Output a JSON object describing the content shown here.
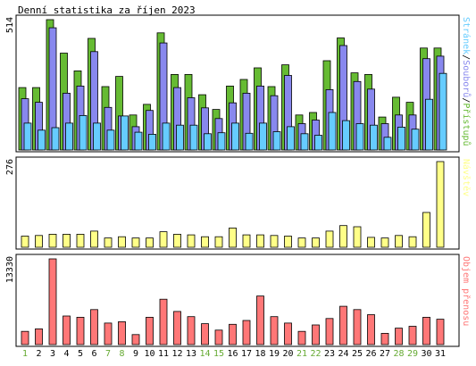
{
  "chart_data": {
    "type": "bar",
    "title": "Denní statistika za říjen 2023",
    "categories": [
      "1",
      "2",
      "3",
      "4",
      "5",
      "6",
      "7",
      "8",
      "9",
      "10",
      "11",
      "12",
      "13",
      "14",
      "15",
      "16",
      "17",
      "18",
      "19",
      "20",
      "21",
      "22",
      "23",
      "24",
      "25",
      "26",
      "27",
      "28",
      "29",
      "30",
      "31"
    ],
    "weekend_days": [
      1,
      7,
      8,
      14,
      15,
      21,
      22,
      28,
      29
    ],
    "colors": {
      "pristupu": "#66bb33",
      "souboru": "#8888ee",
      "stranek": "#66ccff",
      "navstev": "#ffff88",
      "prenosu": "#ff7777",
      "weekday_label": "#000000",
      "weekend_label": "#66aa33"
    },
    "panels": [
      {
        "id": "top",
        "ymax": 514,
        "ymax_label": "514",
        "legend": [
          {
            "key": "stranek",
            "text": "Stránek"
          },
          {
            "key": "sep1",
            "text": "/"
          },
          {
            "key": "souboru",
            "text": "Souborů"
          },
          {
            "key": "sep2",
            "text": "/"
          },
          {
            "key": "pristupu",
            "text": "Přístupů"
          }
        ],
        "series": [
          {
            "key": "pristupu",
            "name": "Přístupů",
            "values": [
              246,
              246,
              514,
              382,
              312,
              440,
              250,
              290,
              138,
              180,
              462,
              298,
              298,
              218,
              160,
              252,
              278,
              324,
              250,
              336,
              138,
              148,
              352,
              442,
              304,
              298,
              130,
              208,
              188,
              402,
              402
            ]
          },
          {
            "key": "souboru",
            "name": "Souborů",
            "values": [
              202,
              188,
              482,
              224,
              252,
              388,
              168,
              134,
              92,
              156,
              422,
              246,
              206,
              166,
              124,
              186,
              224,
              252,
              214,
              294,
              104,
              118,
              238,
              412,
              270,
              240,
              104,
              138,
              138,
              360,
              370
            ]
          },
          {
            "key": "stranek",
            "name": "Stránek",
            "values": [
              106,
              78,
              88,
              106,
              136,
              106,
              78,
              134,
              70,
              62,
              106,
              98,
              98,
              64,
              68,
              106,
              66,
              106,
              72,
              92,
              64,
              58,
              148,
              116,
              104,
              98,
              50,
              90,
              82,
              200,
              302
            ]
          }
        ]
      },
      {
        "id": "mid",
        "ymax": 276,
        "ymax_label": "276",
        "legend": [
          {
            "key": "navstev",
            "text": "Návštěv"
          }
        ],
        "series": [
          {
            "key": "navstev",
            "name": "Návštěv",
            "values": [
              36,
              38,
              42,
              42,
              42,
              52,
              30,
              34,
              30,
              30,
              50,
              42,
              40,
              34,
              34,
              62,
              40,
              40,
              38,
              36,
              30,
              30,
              52,
              70,
              66,
              32,
              30,
              38,
              34,
              112,
              276
            ]
          }
        ]
      },
      {
        "id": "bot",
        "ymax": 13330,
        "ymax_label": "13330",
        "legend": [
          {
            "key": "prenosu",
            "text": "Objem přenosu"
          }
        ],
        "series": [
          {
            "key": "prenosu",
            "name": "Objem přenosu",
            "values": [
              2050,
              2450,
              13330,
              4450,
              4250,
              5450,
              3350,
              3550,
              1550,
              4250,
              7050,
              5150,
              4350,
              3250,
              2250,
              3150,
              3750,
              7550,
              4350,
              3350,
              2050,
              3050,
              4050,
              5950,
              5450,
              4650,
              1750,
              2550,
              2850,
              4250,
              3950
            ]
          }
        ]
      }
    ]
  }
}
